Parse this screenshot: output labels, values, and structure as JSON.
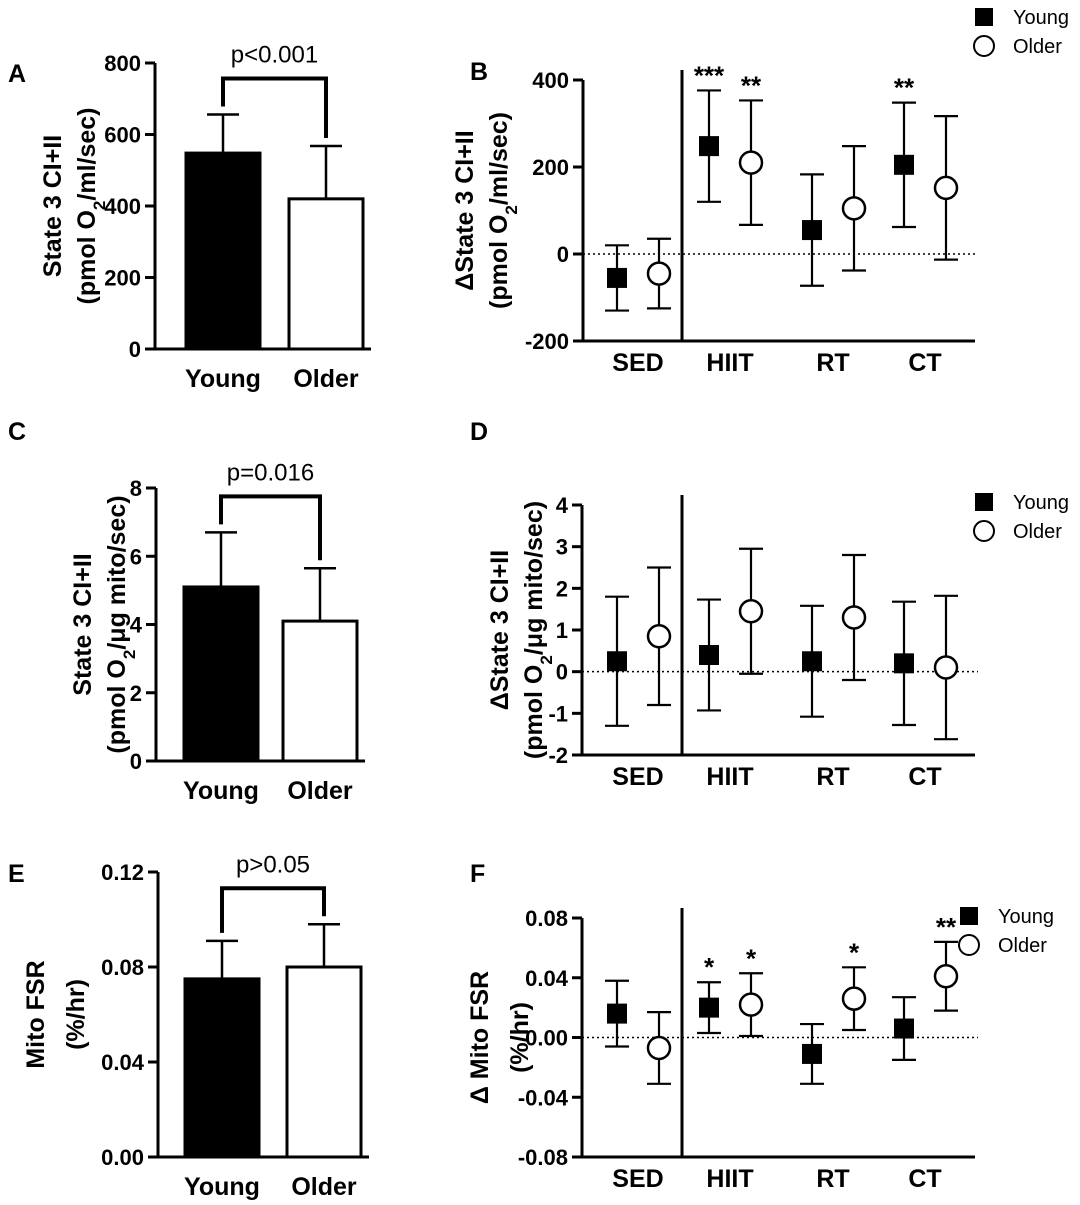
{
  "colors": {
    "young": "#000000",
    "older": "#ffffff",
    "stroke": "#000000"
  },
  "legend": {
    "young": "Young",
    "older": "Older"
  },
  "chart_data": [
    {
      "panel": "A",
      "type": "bar",
      "ylabel_lines": [
        "State 3 CI+II",
        "(pmol O",
        "2",
        "/ml/sec)"
      ],
      "categories": [
        "Young",
        "Older"
      ],
      "values": [
        548,
        420
      ],
      "errors": [
        108,
        148
      ],
      "ylim": [
        0,
        800
      ],
      "yticks": [
        "0",
        "200",
        "400",
        "600",
        "800"
      ],
      "annotation": "p<0.001"
    },
    {
      "panel": "B",
      "type": "scatter",
      "ylabel_lines": [
        "ΔState 3 CI+II",
        "(pmol O",
        "2",
        "/ml/sec)"
      ],
      "categories": [
        "SED",
        "HIIT",
        "RT",
        "CT"
      ],
      "ylim": [
        -200,
        400
      ],
      "yticks": [
        "-200",
        "0",
        "200",
        "400"
      ],
      "series": [
        {
          "name": "Young",
          "values": [
            -55,
            248,
            55,
            205
          ],
          "errors": [
            75,
            128,
            128,
            143
          ]
        },
        {
          "name": "Older",
          "values": [
            -45,
            210,
            105,
            152
          ],
          "errors": [
            80,
            143,
            143,
            165
          ]
        }
      ],
      "stars": [
        {
          "category": "HIIT",
          "series": "Young",
          "text": "***"
        },
        {
          "category": "HIIT",
          "series": "Older",
          "text": "**"
        },
        {
          "category": "CT",
          "series": "Young",
          "text": "**"
        }
      ],
      "legend": true
    },
    {
      "panel": "C",
      "type": "bar",
      "ylabel_lines": [
        "State 3 CI+II",
        "(pmol O",
        "2",
        "/μg mito/sec)"
      ],
      "categories": [
        "Young",
        "Older"
      ],
      "values": [
        5.1,
        4.1
      ],
      "errors": [
        1.6,
        1.55
      ],
      "ylim": [
        0,
        8
      ],
      "yticks": [
        "0",
        "2",
        "4",
        "6",
        "8"
      ],
      "annotation": "p=0.016"
    },
    {
      "panel": "D",
      "type": "scatter",
      "ylabel_lines": [
        "ΔState 3 CI+II",
        "(pmol O",
        "2",
        "/μg  mito/sec)"
      ],
      "categories": [
        "SED",
        "HIIT",
        "RT",
        "CT"
      ],
      "ylim": [
        -2,
        4
      ],
      "yticks": [
        "-2",
        "-1",
        "0",
        "1",
        "2",
        "3",
        "4"
      ],
      "series": [
        {
          "name": "Young",
          "values": [
            0.25,
            0.4,
            0.25,
            0.2
          ],
          "errors": [
            1.55,
            1.33,
            1.33,
            1.48
          ]
        },
        {
          "name": "Older",
          "values": [
            0.85,
            1.45,
            1.3,
            0.1
          ],
          "errors": [
            1.65,
            1.5,
            1.5,
            1.72
          ]
        }
      ],
      "stars": [],
      "legend": true
    },
    {
      "panel": "E",
      "type": "bar",
      "ylabel_lines": [
        "Mito FSR",
        "(%/hr)"
      ],
      "categories": [
        "Young",
        "Older"
      ],
      "values": [
        0.075,
        0.08
      ],
      "errors": [
        0.016,
        0.018
      ],
      "ylim": [
        0,
        0.12
      ],
      "yticks": [
        "0.00",
        "0.04",
        "0.08",
        "0.12"
      ],
      "annotation": "p>0.05"
    },
    {
      "panel": "F",
      "type": "scatter",
      "ylabel_lines": [
        "Δ Mito FSR",
        "(%/hr)"
      ],
      "categories": [
        "SED",
        "HIIT",
        "RT",
        "CT"
      ],
      "ylim": [
        -0.08,
        0.08
      ],
      "yticks": [
        "-0.08",
        "-0.04",
        "0.00",
        "0.04",
        "0.08"
      ],
      "series": [
        {
          "name": "Young",
          "values": [
            0.016,
            0.02,
            -0.011,
            0.006
          ],
          "errors": [
            0.022,
            0.017,
            0.02,
            0.021
          ]
        },
        {
          "name": "Older",
          "values": [
            -0.007,
            0.022,
            0.026,
            0.041
          ],
          "errors": [
            0.024,
            0.021,
            0.021,
            0.023
          ]
        }
      ],
      "stars": [
        {
          "category": "HIIT",
          "series": "Young",
          "text": "*"
        },
        {
          "category": "HIIT",
          "series": "Older",
          "text": "*"
        },
        {
          "category": "RT",
          "series": "Older",
          "text": "*"
        },
        {
          "category": "CT",
          "series": "Older",
          "text": "**"
        }
      ],
      "legend": true
    }
  ]
}
